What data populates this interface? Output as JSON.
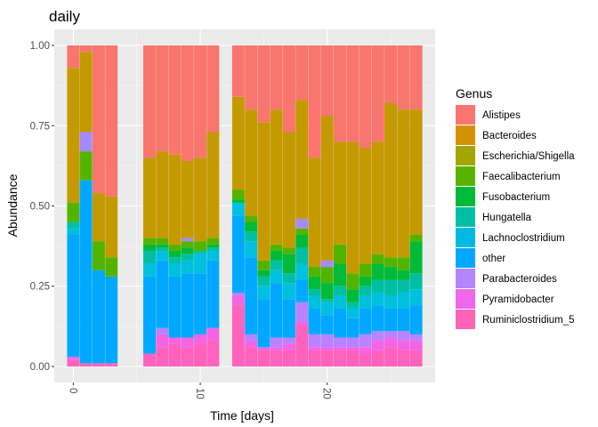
{
  "chart_data": {
    "type": "bar",
    "stacked": true,
    "title": "daily",
    "xlabel": "Time [days]",
    "ylabel": "Abundance",
    "xlim": [
      -1.5,
      28.5
    ],
    "ylim": [
      -0.05,
      1.05
    ],
    "x_ticks": [
      0,
      10,
      20
    ],
    "y_ticks": [
      0.0,
      0.25,
      0.5,
      0.75,
      1.0
    ],
    "y_tick_labels": [
      "0.00",
      "0.25",
      "0.50",
      "0.75",
      "1.00"
    ],
    "grid": true,
    "legend_title": "Genus",
    "legend_position": "right",
    "x": [
      0,
      1,
      2,
      3,
      6,
      7,
      8,
      9,
      10,
      11,
      13,
      14,
      15,
      16,
      17,
      18,
      19,
      20,
      21,
      22,
      23,
      24,
      25,
      26,
      27
    ],
    "series": [
      {
        "name": "Ruminiclostridium_5",
        "color": "#FF62BC",
        "values": [
          0.02,
          0.01,
          0.01,
          0.01,
          0.04,
          0.06,
          0.07,
          0.06,
          0.07,
          0.08,
          0.19,
          0.06,
          0.05,
          0.05,
          0.05,
          0.13,
          0.05,
          0.05,
          0.05,
          0.05,
          0.04,
          0.05,
          0.06,
          0.05,
          0.05
        ]
      },
      {
        "name": "Pyramidobacter",
        "color": "#F564E3",
        "values": [
          0.01,
          0.0,
          0.0,
          0.0,
          0.0,
          0.04,
          0.02,
          0.03,
          0.03,
          0.04,
          0.03,
          0.02,
          0.01,
          0.01,
          0.02,
          0.01,
          0.01,
          0.01,
          0.01,
          0.01,
          0.02,
          0.03,
          0.03,
          0.03,
          0.03
        ]
      },
      {
        "name": "Parabacteroides",
        "color": "#B983FF",
        "values": [
          0.0,
          0.0,
          0.0,
          0.0,
          0.0,
          0.02,
          0.0,
          0.0,
          0.0,
          0.0,
          0.01,
          0.02,
          0.0,
          0.03,
          0.02,
          0.06,
          0.04,
          0.04,
          0.03,
          0.03,
          0.04,
          0.03,
          0.02,
          0.03,
          0.02
        ]
      },
      {
        "name": "other",
        "color": "#00A9FF",
        "values": [
          0.38,
          0.57,
          0.29,
          0.27,
          0.24,
          0.21,
          0.19,
          0.2,
          0.19,
          0.21,
          0.24,
          0.24,
          0.15,
          0.17,
          0.12,
          0.07,
          0.08,
          0.06,
          0.09,
          0.06,
          0.08,
          0.08,
          0.07,
          0.07,
          0.09
        ]
      },
      {
        "name": "Lachnoclostridium",
        "color": "#00C0E0",
        "values": [
          0.02,
          0.0,
          0.0,
          0.0,
          0.04,
          0.03,
          0.04,
          0.04,
          0.06,
          0.03,
          0.04,
          0.05,
          0.04,
          0.04,
          0.05,
          0.05,
          0.04,
          0.04,
          0.04,
          0.03,
          0.04,
          0.04,
          0.04,
          0.05,
          0.05
        ]
      },
      {
        "name": "Hungatella",
        "color": "#00BFA5",
        "values": [
          0.02,
          0.0,
          0.0,
          0.0,
          0.04,
          0.01,
          0.02,
          0.02,
          0.01,
          0.01,
          0.0,
          0.03,
          0.03,
          0.03,
          0.03,
          0.05,
          0.02,
          0.01,
          0.03,
          0.02,
          0.03,
          0.04,
          0.05,
          0.04,
          0.05
        ]
      },
      {
        "name": "Fusobacterium",
        "color": "#00BA38",
        "values": [
          0.0,
          0.0,
          0.0,
          0.0,
          0.02,
          0.01,
          0.02,
          0.02,
          0.0,
          0.01,
          0.01,
          0.03,
          0.02,
          0.03,
          0.06,
          0.04,
          0.04,
          0.05,
          0.07,
          0.04,
          0.03,
          0.05,
          0.04,
          0.03,
          0.1
        ]
      },
      {
        "name": "Faecalibacterium",
        "color": "#53B400",
        "values": [
          0.06,
          0.09,
          0.09,
          0.06,
          0.02,
          0.02,
          0.02,
          0.02,
          0.03,
          0.02,
          0.03,
          0.02,
          0.03,
          0.02,
          0.02,
          0.02,
          0.03,
          0.05,
          0.06,
          0.05,
          0.04,
          0.03,
          0.03,
          0.04,
          0.02
        ]
      },
      {
        "name": "Escherichia/Shigella",
        "color": "#A58AFF",
        "values": [
          0.0,
          0.06,
          0.0,
          0.0,
          0.0,
          0.0,
          0.0,
          0.01,
          0.0,
          0.0,
          0.0,
          0.0,
          0.0,
          0.0,
          0.0,
          0.03,
          0.0,
          0.02,
          0.0,
          0.0,
          0.0,
          0.0,
          0.0,
          0.0,
          0.0
        ]
      },
      {
        "name": "Bacteroides",
        "color": "#C49A00",
        "values": [
          0.42,
          0.25,
          0.15,
          0.19,
          0.25,
          0.27,
          0.28,
          0.24,
          0.26,
          0.33,
          0.29,
          0.33,
          0.43,
          0.42,
          0.36,
          0.37,
          0.34,
          0.45,
          0.32,
          0.41,
          0.36,
          0.35,
          0.48,
          0.46,
          0.39
        ]
      },
      {
        "name": "Alistipes",
        "color": "#F8766D",
        "values": [
          0.07,
          0.02,
          0.46,
          0.47,
          0.35,
          0.33,
          0.34,
          0.36,
          0.35,
          0.27,
          0.16,
          0.2,
          0.24,
          0.2,
          0.27,
          0.17,
          0.35,
          0.22,
          0.3,
          0.3,
          0.32,
          0.3,
          0.18,
          0.2,
          0.2
        ]
      }
    ],
    "legend_order": [
      "Alistipes",
      "Bacteroides",
      "Escherichia/Shigella",
      "Faecalibacterium",
      "Fusobacterium",
      "Hungatella",
      "Lachnoclostridium",
      "other",
      "Parabacteroides",
      "Pyramidobacter",
      "Ruminiclostridium_5"
    ],
    "legend_colors": [
      "#F8766D",
      "#D39200",
      "#A3A500",
      "#5BB300",
      "#00BA38",
      "#00BFA4",
      "#00B9E3",
      "#00A9FF",
      "#B385FF",
      "#EF67EB",
      "#FF63B6"
    ]
  }
}
